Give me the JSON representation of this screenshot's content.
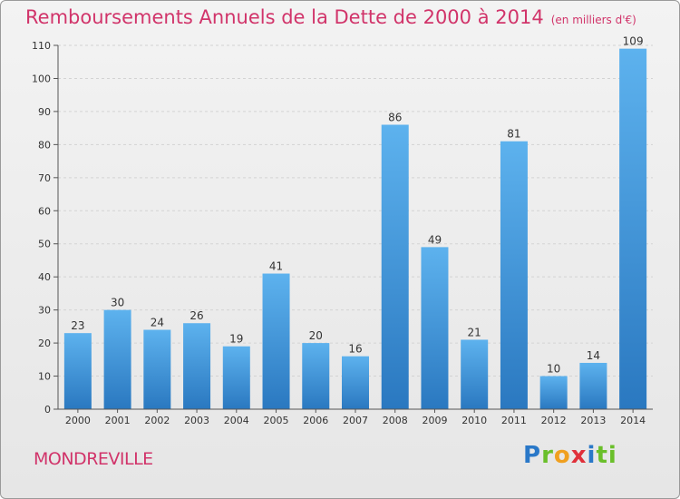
{
  "header": {
    "title": "Remboursements Annuels de la Dette de 2000 à 2014",
    "unit": "(en milliers d'€)"
  },
  "footer": {
    "commune": "MONDREVILLE",
    "logo": [
      "P",
      "r",
      "o",
      "x",
      "i",
      "ti"
    ]
  },
  "chart_data": {
    "type": "bar",
    "categories": [
      "2000",
      "2001",
      "2002",
      "2003",
      "2004",
      "2005",
      "2006",
      "2007",
      "2008",
      "2009",
      "2010",
      "2011",
      "2012",
      "2013",
      "2014"
    ],
    "values": [
      23,
      30,
      24,
      26,
      19,
      41,
      20,
      16,
      86,
      49,
      21,
      81,
      10,
      14,
      109
    ],
    "ylim": [
      0,
      110
    ],
    "yticks": [
      0,
      10,
      20,
      30,
      40,
      50,
      60,
      70,
      80,
      90,
      100,
      110
    ],
    "grid": true,
    "bar_color": "#3f9ae0"
  }
}
